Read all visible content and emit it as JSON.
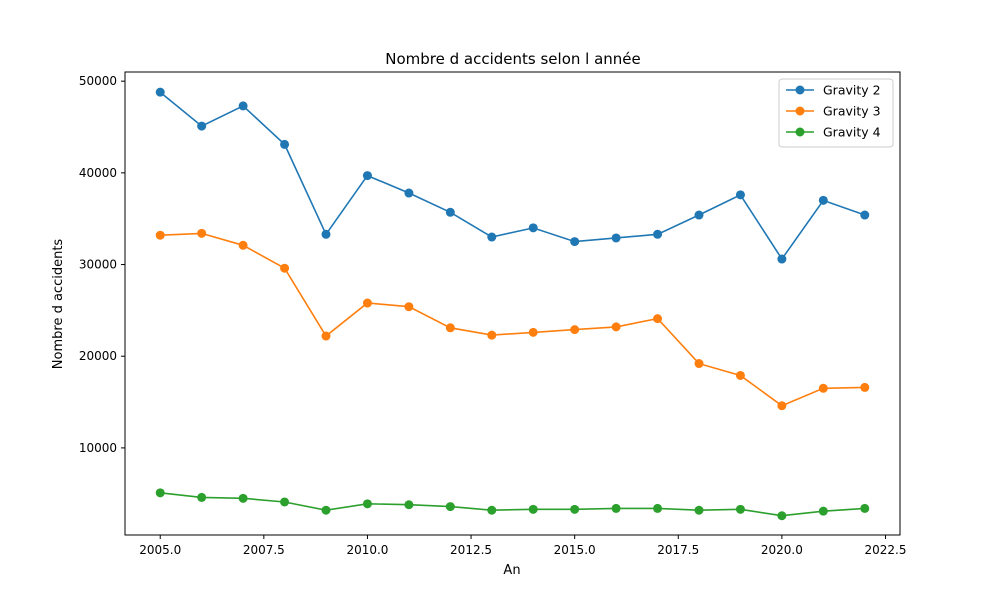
{
  "chart_data": {
    "type": "line",
    "title": "Nombre d accidents selon l année",
    "xlabel": "An",
    "ylabel": "Nombre d accidents",
    "xlim": [
      2004.15,
      2022.85
    ],
    "ylim": [
      500,
      51000
    ],
    "xticks": [
      2005.0,
      2007.5,
      2010.0,
      2012.5,
      2015.0,
      2017.5,
      2020.0,
      2022.5
    ],
    "xtick_labels": [
      "2005.0",
      "2007.5",
      "2010.0",
      "2012.5",
      "2015.0",
      "2017.5",
      "2020.0",
      "2022.5"
    ],
    "yticks": [
      10000,
      20000,
      30000,
      40000,
      50000
    ],
    "ytick_labels": [
      "10000",
      "20000",
      "30000",
      "40000",
      "50000"
    ],
    "grid": false,
    "legend_position": "top-right",
    "x": [
      2005,
      2006,
      2007,
      2008,
      2009,
      2010,
      2011,
      2012,
      2013,
      2014,
      2015,
      2016,
      2017,
      2018,
      2019,
      2020,
      2021,
      2022
    ],
    "series": [
      {
        "name": "Gravity 2",
        "color": "#1f77b4",
        "values": [
          48800,
          45100,
          47300,
          43100,
          33300,
          39700,
          37800,
          35700,
          33000,
          34000,
          32500,
          32900,
          33300,
          35400,
          37600,
          30600,
          37000,
          35400
        ]
      },
      {
        "name": "Gravity 3",
        "color": "#ff7f0e",
        "values": [
          33200,
          33400,
          32100,
          29600,
          22200,
          25800,
          25400,
          23100,
          22300,
          22600,
          22900,
          23200,
          24100,
          19200,
          17900,
          14600,
          16500,
          16600
        ]
      },
      {
        "name": "Gravity 4",
        "color": "#2ca02c",
        "values": [
          5100,
          4600,
          4500,
          4100,
          3200,
          3900,
          3800,
          3600,
          3200,
          3300,
          3300,
          3400,
          3400,
          3200,
          3300,
          2600,
          3100,
          3400
        ]
      }
    ]
  }
}
